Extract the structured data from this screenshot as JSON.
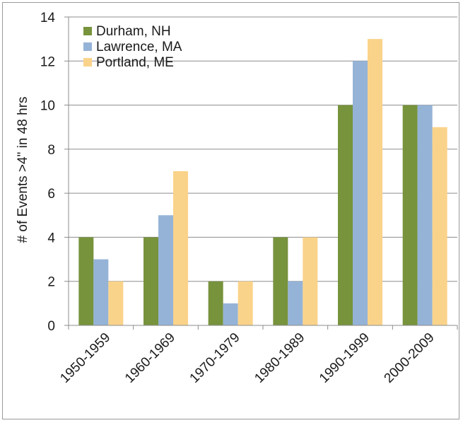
{
  "chart_data": {
    "type": "bar",
    "title": "",
    "xlabel": "",
    "ylabel": "# of Events >4\" in 48 hrs",
    "ylim": [
      0,
      14
    ],
    "yticks": [
      "0",
      "2",
      "4",
      "6",
      "8",
      "10",
      "12",
      "14"
    ],
    "grid": true,
    "legend_position": "top-left",
    "categories": [
      "1950-1959",
      "1960-1969",
      "1970-1979",
      "1980-1989",
      "1990-1999",
      "2000-2009"
    ],
    "series": [
      {
        "name": "Durham, NH",
        "color": "#77933c",
        "values": [
          4,
          4,
          2,
          4,
          10,
          10
        ]
      },
      {
        "name": "Lawrence, MA",
        "color": "#95b3d7",
        "values": [
          3,
          5,
          1,
          2,
          12,
          10
        ]
      },
      {
        "name": "Portland, ME",
        "color": "#fad38a",
        "values": [
          2,
          7,
          2,
          4,
          13,
          9
        ]
      }
    ]
  }
}
